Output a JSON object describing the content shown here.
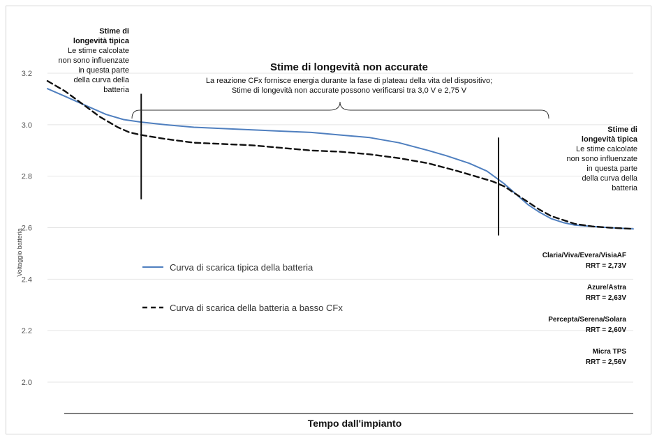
{
  "chart_data": {
    "type": "line",
    "title": "",
    "xlabel": "Tempo dall'impianto",
    "ylabel": "Voltaggio batteria",
    "ylim": [
      2.0,
      3.2
    ],
    "yticks": [
      "3.2",
      "3.0",
      "2.8",
      "2.6",
      "2.4",
      "2.2",
      "2.0"
    ],
    "grid": true,
    "legend_position": "left-center",
    "series": [
      {
        "name": "Curva di scarica tipica della batteria",
        "style": "solid",
        "color": "#4f7fbf",
        "x": [
          0,
          3,
          6,
          8,
          10,
          13,
          16,
          20,
          25,
          30,
          35,
          40,
          45,
          50,
          55,
          60,
          65,
          68,
          72,
          75,
          78,
          80,
          82,
          84,
          86,
          88,
          90,
          93,
          96,
          100
        ],
        "y": [
          3.14,
          3.11,
          3.08,
          3.06,
          3.04,
          3.02,
          3.01,
          3.0,
          2.99,
          2.985,
          2.98,
          2.975,
          2.97,
          2.96,
          2.95,
          2.93,
          2.9,
          2.88,
          2.85,
          2.82,
          2.77,
          2.73,
          2.69,
          2.66,
          2.635,
          2.62,
          2.61,
          2.605,
          2.6,
          2.595
        ]
      },
      {
        "name": "Curva di scarica della batteria a basso CFx",
        "style": "dashed",
        "color": "#111111",
        "x": [
          0,
          3,
          6,
          9,
          12,
          14,
          16,
          20,
          25,
          30,
          35,
          40,
          45,
          50,
          55,
          60,
          65,
          70,
          73,
          76,
          78,
          80,
          82,
          84,
          86,
          88,
          90,
          93,
          96,
          100
        ],
        "y": [
          3.17,
          3.13,
          3.08,
          3.03,
          2.99,
          2.97,
          2.96,
          2.945,
          2.93,
          2.925,
          2.92,
          2.91,
          2.9,
          2.895,
          2.885,
          2.87,
          2.85,
          2.82,
          2.8,
          2.78,
          2.76,
          2.73,
          2.7,
          2.67,
          2.645,
          2.63,
          2.615,
          2.605,
          2.6,
          2.595
        ]
      }
    ],
    "markers_x": [
      16,
      77
    ],
    "annotations": {
      "left_note": {
        "title": [
          "Stime di",
          "longevità tipica"
        ],
        "body": [
          "Le stime calcolate",
          "non sono influenzate",
          "in questa parte",
          "della curva della",
          "batteria"
        ]
      },
      "middle_note": {
        "title": "Stime di longevità non accurate",
        "body": [
          "La reazione CFx fornisce energia durante la fase di plateau della vita del dispositivo;",
          "Stime di longevità non accurate possono verificarsi tra 3,0 V e 2,75 V"
        ]
      },
      "right_note": {
        "title": [
          "Stime di",
          "longevità tipica"
        ],
        "body": [
          "Le stime calcolate",
          "non sono influenzate",
          "in questa parte",
          "della curva della",
          "batteria"
        ]
      }
    },
    "rrt_list": [
      {
        "device": "Claria/Viva/Evera/VisiaAF",
        "rrt": "RRT = 2,73V"
      },
      {
        "device": "Azure/Astra",
        "rrt": "RRT = 2,63V"
      },
      {
        "device": "Percepta/Serena/Solara",
        "rrt": "RRT = 2,60V"
      },
      {
        "device": "Micra TPS",
        "rrt": "RRT = 2,56V"
      }
    ]
  }
}
